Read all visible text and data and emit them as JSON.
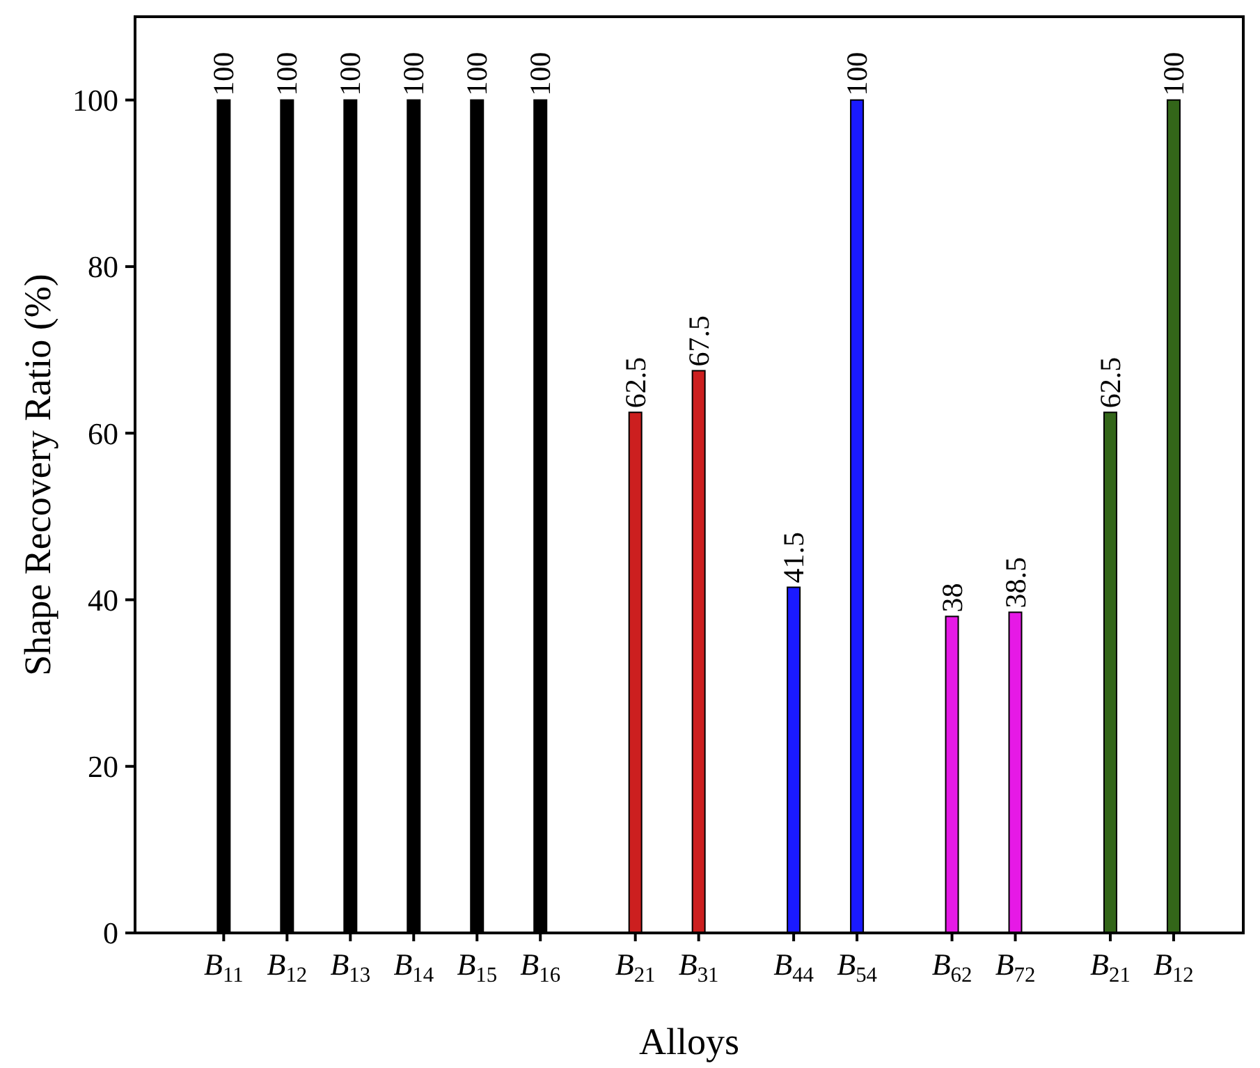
{
  "chart_data": {
    "type": "bar",
    "xlabel": "Alloys",
    "ylabel": "Shape Recovery Ratio (%)",
    "categories": [
      "B$_{11}$",
      "B$_{12}$",
      "B$_{13}$",
      "B$_{14}$",
      "B$_{15}$",
      "B$_{16}$",
      "B$_{21}$",
      "B$_{31}$",
      "B$_{44}$",
      "B$_{54}$",
      "B$_{62}$",
      "B$_{72}$",
      "B$_{21}$",
      "B$_{12}$"
    ],
    "values": [
      100,
      100,
      100,
      100,
      100,
      100,
      62.5,
      67.5,
      41.5,
      100,
      38,
      38.5,
      62.5,
      100
    ],
    "colors": [
      "#000000",
      "#000000",
      "#000000",
      "#000000",
      "#000000",
      "#000000",
      "#cc1f1f",
      "#cc1f1f",
      "#1a1aff",
      "#1a1aff",
      "#e619e6",
      "#e619e6",
      "#336619",
      "#336619"
    ],
    "ylim": [
      0,
      110
    ],
    "yticks": [
      0,
      20,
      40,
      60,
      80,
      100
    ],
    "data_labels": true
  }
}
